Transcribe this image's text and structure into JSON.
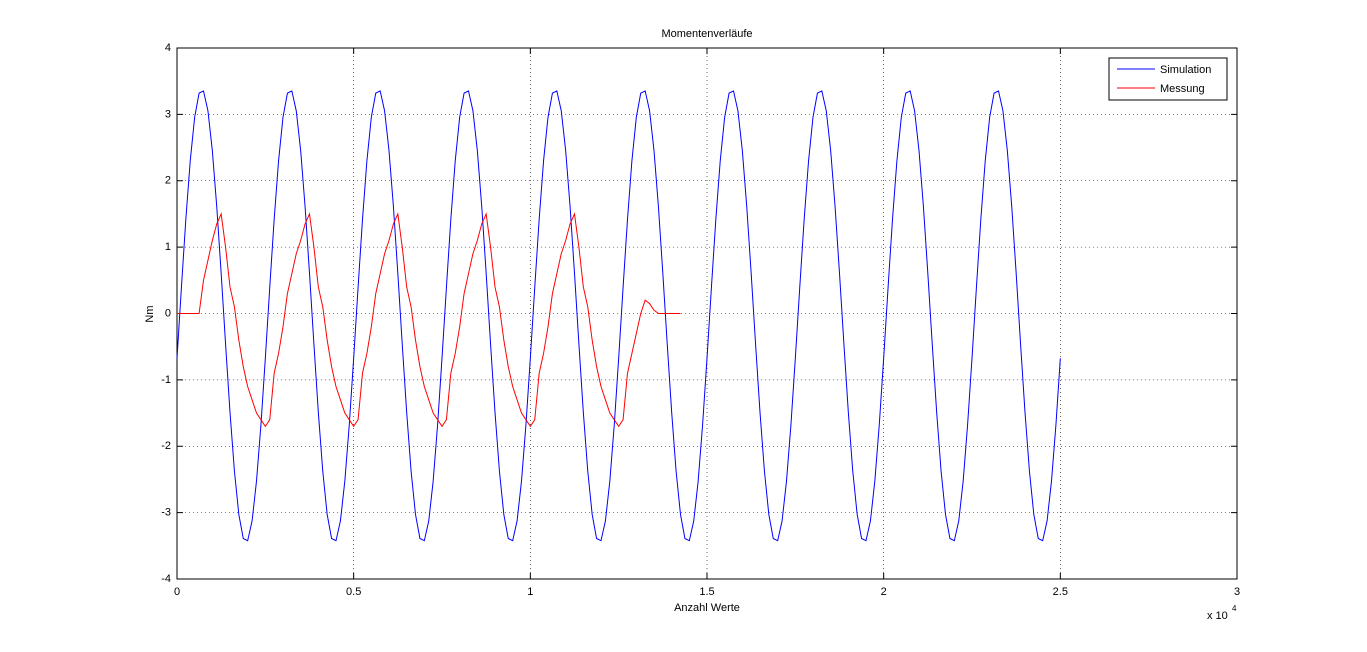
{
  "chart_data": {
    "type": "line",
    "title": "Momentenverläufe",
    "x_label": "Anzahl Werte",
    "y_label": "Nm",
    "x_scale_label": {
      "base": "x 10",
      "exponent": "4"
    },
    "xlim": [
      0,
      30000
    ],
    "xticks": [
      0,
      {
        "value": 5000,
        "label": "0.5"
      },
      {
        "value": 10000,
        "label": "1"
      },
      {
        "value": 15000,
        "label": "1.5"
      },
      {
        "value": 20000,
        "label": "2"
      },
      {
        "value": 25000,
        "label": "2.5"
      },
      {
        "value": 30000,
        "label": "3"
      }
    ],
    "ylim": [
      -4,
      4
    ],
    "yticks": [
      -4,
      -3,
      -2,
      -1,
      0,
      1,
      2,
      3,
      4
    ],
    "grid": true,
    "legend": "northeast",
    "x": [
      0,
      125,
      250,
      375,
      500,
      625,
      750,
      875,
      1000,
      1125,
      1250,
      1375,
      1500,
      1625,
      1750,
      1875,
      2000,
      2125,
      2250,
      2375,
      2500,
      2625,
      2750,
      2875,
      3000,
      3125,
      3250,
      3375,
      3500,
      3625,
      3750,
      3875,
      4000,
      4125,
      4250,
      4375,
      4500,
      4625,
      4750,
      4875,
      5000,
      5125,
      5250,
      5375,
      5500,
      5625,
      5750,
      5875,
      6000,
      6125,
      6250,
      6375,
      6500,
      6625,
      6750,
      6875,
      7000,
      7125,
      7250,
      7375,
      7500,
      7625,
      7750,
      7875,
      8000,
      8125,
      8250,
      8375,
      8500,
      8625,
      8750,
      8875,
      9000,
      9125,
      9250,
      9375,
      9500,
      9625,
      9750,
      9875,
      10000,
      10125,
      10250,
      10375,
      10500,
      10625,
      10750,
      10875,
      11000,
      11125,
      11250,
      11375,
      11500,
      11625,
      11750,
      11875,
      12000,
      12125,
      12250,
      12375,
      12500,
      12625,
      12750,
      12875,
      13000,
      13125,
      13250,
      13375,
      13500,
      13625,
      13750,
      13875,
      14000,
      14125,
      14250,
      14375,
      14500,
      14625,
      14750,
      14875,
      15000,
      15125,
      15250,
      15375,
      15500,
      15625,
      15750,
      15875,
      16000,
      16125,
      16250,
      16375,
      16500,
      16625,
      16750,
      16875,
      17000,
      17125,
      17250,
      17375,
      17500,
      17625,
      17750,
      17875,
      18000,
      18125,
      18250,
      18375,
      18500,
      18625,
      18750,
      18875,
      19000,
      19125,
      19250,
      19375,
      19500,
      19625,
      19750,
      19875,
      20000,
      20125,
      20250,
      20375,
      20500,
      20625,
      20750,
      20875,
      21000,
      21125,
      21250,
      21375,
      21500,
      21625,
      21750,
      21875,
      22000,
      22125,
      22250,
      22375,
      22500,
      22625,
      22750,
      22875,
      23000,
      23125,
      23250,
      23375,
      23500,
      23625,
      23750,
      23875,
      24000,
      24125,
      24250,
      24375,
      24500,
      24625,
      24750,
      24875,
      25000
    ],
    "series": [
      {
        "name": "Simulation",
        "color": "#0000ff",
        "values": [
          -0.675,
          0.393,
          1.419,
          2.303,
          2.958,
          3.32,
          3.353,
          3.055,
          2.455,
          1.61,
          0.605,
          -0.463,
          -1.489,
          -2.373,
          -3.028,
          -3.39,
          -3.423,
          -3.125,
          -2.525,
          -1.68,
          -0.675,
          0.393,
          1.419,
          2.303,
          2.958,
          3.32,
          3.353,
          3.055,
          2.455,
          1.61,
          0.605,
          -0.463,
          -1.489,
          -2.373,
          -3.028,
          -3.39,
          -3.423,
          -3.125,
          -2.525,
          -1.68,
          -0.675,
          0.393,
          1.419,
          2.303,
          2.958,
          3.32,
          3.353,
          3.055,
          2.455,
          1.61,
          0.605,
          -0.463,
          -1.489,
          -2.373,
          -3.028,
          -3.39,
          -3.423,
          -3.125,
          -2.525,
          -1.68,
          -0.675,
          0.393,
          1.419,
          2.303,
          2.958,
          3.32,
          3.353,
          3.055,
          2.455,
          1.61,
          0.605,
          -0.463,
          -1.489,
          -2.373,
          -3.028,
          -3.39,
          -3.423,
          -3.125,
          -2.525,
          -1.68,
          -0.675,
          0.393,
          1.419,
          2.303,
          2.958,
          3.32,
          3.353,
          3.055,
          2.455,
          1.61,
          0.605,
          -0.463,
          -1.489,
          -2.373,
          -3.028,
          -3.39,
          -3.423,
          -3.125,
          -2.525,
          -1.68,
          -0.675,
          0.393,
          1.419,
          2.303,
          2.958,
          3.32,
          3.353,
          3.055,
          2.455,
          1.61,
          0.605,
          -0.463,
          -1.489,
          -2.373,
          -3.028,
          -3.39,
          -3.423,
          -3.125,
          -2.525,
          -1.68,
          -0.675,
          0.393,
          1.419,
          2.303,
          2.958,
          3.32,
          3.353,
          3.055,
          2.455,
          1.61,
          0.605,
          -0.463,
          -1.489,
          -2.373,
          -3.028,
          -3.39,
          -3.423,
          -3.125,
          -2.525,
          -1.68,
          -0.675,
          0.393,
          1.419,
          2.303,
          2.958,
          3.32,
          3.353,
          3.055,
          2.455,
          1.61,
          0.605,
          -0.463,
          -1.489,
          -2.373,
          -3.028,
          -3.39,
          -3.423,
          -3.125,
          -2.525,
          -1.68,
          -0.675,
          0.393,
          1.419,
          2.303,
          2.958,
          3.32,
          3.353,
          3.055,
          2.455,
          1.61,
          0.605,
          -0.463,
          -1.489,
          -2.373,
          -3.028,
          -3.39,
          -3.423,
          -3.125,
          -2.525,
          -1.68,
          -0.675,
          0.393,
          1.419,
          2.303,
          2.958,
          3.32,
          3.353,
          3.055,
          2.455,
          1.61,
          0.605,
          -0.463,
          -1.489,
          -2.373,
          -3.028,
          -3.39,
          -3.423,
          -3.125,
          -2.525,
          -1.68,
          -0.675
        ]
      },
      {
        "name": "Messung",
        "color": "#ff0000",
        "values": [
          0,
          0,
          0,
          0,
          0,
          0,
          0.5,
          0.8,
          1.1,
          1.35,
          1.5,
          1.0,
          0.4,
          0.1,
          -0.4,
          -0.8,
          -1.1,
          -1.3,
          -1.5,
          -1.6,
          -1.7,
          -1.6,
          -0.9,
          -0.6,
          -0.2,
          0.3,
          0.6,
          0.9,
          1.1,
          1.35,
          1.5,
          1.0,
          0.4,
          0.1,
          -0.4,
          -0.8,
          -1.1,
          -1.3,
          -1.5,
          -1.6,
          -1.7,
          -1.6,
          -0.9,
          -0.6,
          -0.2,
          0.3,
          0.6,
          0.9,
          1.1,
          1.35,
          1.5,
          1.0,
          0.4,
          0.1,
          -0.4,
          -0.8,
          -1.1,
          -1.3,
          -1.5,
          -1.6,
          -1.7,
          -1.6,
          -0.9,
          -0.6,
          -0.2,
          0.3,
          0.6,
          0.9,
          1.1,
          1.35,
          1.5,
          1.0,
          0.4,
          0.1,
          -0.4,
          -0.8,
          -1.1,
          -1.3,
          -1.5,
          -1.6,
          -1.7,
          -1.6,
          -0.9,
          -0.6,
          -0.2,
          0.3,
          0.6,
          0.9,
          1.1,
          1.35,
          1.5,
          1.0,
          0.4,
          0.1,
          -0.4,
          -0.8,
          -1.1,
          -1.3,
          -1.5,
          -1.6,
          -1.7,
          -1.6,
          -0.9,
          -0.6,
          -0.3,
          0.0,
          0.2,
          0.15,
          0.05,
          0.0,
          0,
          0,
          0,
          0,
          0,
          null,
          null,
          null,
          null,
          null,
          null,
          null,
          null,
          null,
          null,
          null,
          null,
          null,
          null,
          null,
          null,
          null,
          null,
          null,
          null,
          null,
          null,
          null,
          null,
          null,
          null,
          null,
          null,
          null,
          null,
          null,
          null,
          null,
          null,
          null,
          null,
          null,
          null,
          null,
          null,
          null,
          null,
          null,
          null,
          null,
          null,
          null,
          null,
          null,
          null,
          null,
          null,
          null,
          null,
          null,
          null,
          null,
          null,
          null,
          null,
          null,
          null,
          null,
          null,
          null,
          null,
          null,
          null,
          null,
          null,
          null,
          null,
          null,
          null,
          null,
          null,
          null,
          null,
          null,
          null,
          null,
          null,
          null,
          null,
          null,
          null
        ]
      }
    ]
  }
}
